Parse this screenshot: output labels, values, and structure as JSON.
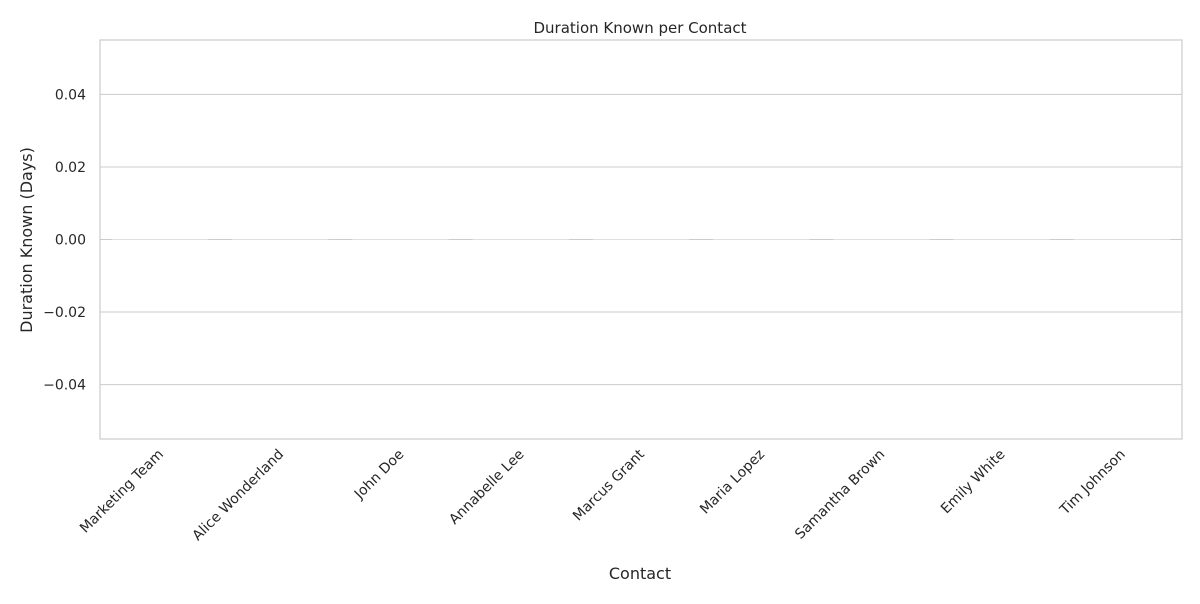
{
  "chart_data": {
    "type": "bar",
    "title": "Duration Known per Contact",
    "xlabel": "Contact",
    "ylabel": "Duration Known (Days)",
    "categories": [
      "Marketing Team",
      "Alice Wonderland",
      "John Doe",
      "Annabelle Lee",
      "Marcus Grant",
      "Maria Lopez",
      "Samantha Brown",
      "Emily White",
      "Tim Johnson"
    ],
    "values": [
      0,
      0,
      0,
      0,
      0,
      0,
      0,
      0,
      0
    ],
    "yticks": [
      -0.04,
      -0.02,
      0.0,
      0.02,
      0.04
    ],
    "ytick_labels": [
      "−0.04",
      "−0.02",
      "0.00",
      "0.02",
      "0.04"
    ],
    "ylim": [
      -0.055,
      0.055
    ],
    "grid": "y",
    "colors": {
      "grid": "#cccccc",
      "frame": "#cccccc",
      "bar": "#e0e0e0",
      "text": "#262626"
    }
  }
}
